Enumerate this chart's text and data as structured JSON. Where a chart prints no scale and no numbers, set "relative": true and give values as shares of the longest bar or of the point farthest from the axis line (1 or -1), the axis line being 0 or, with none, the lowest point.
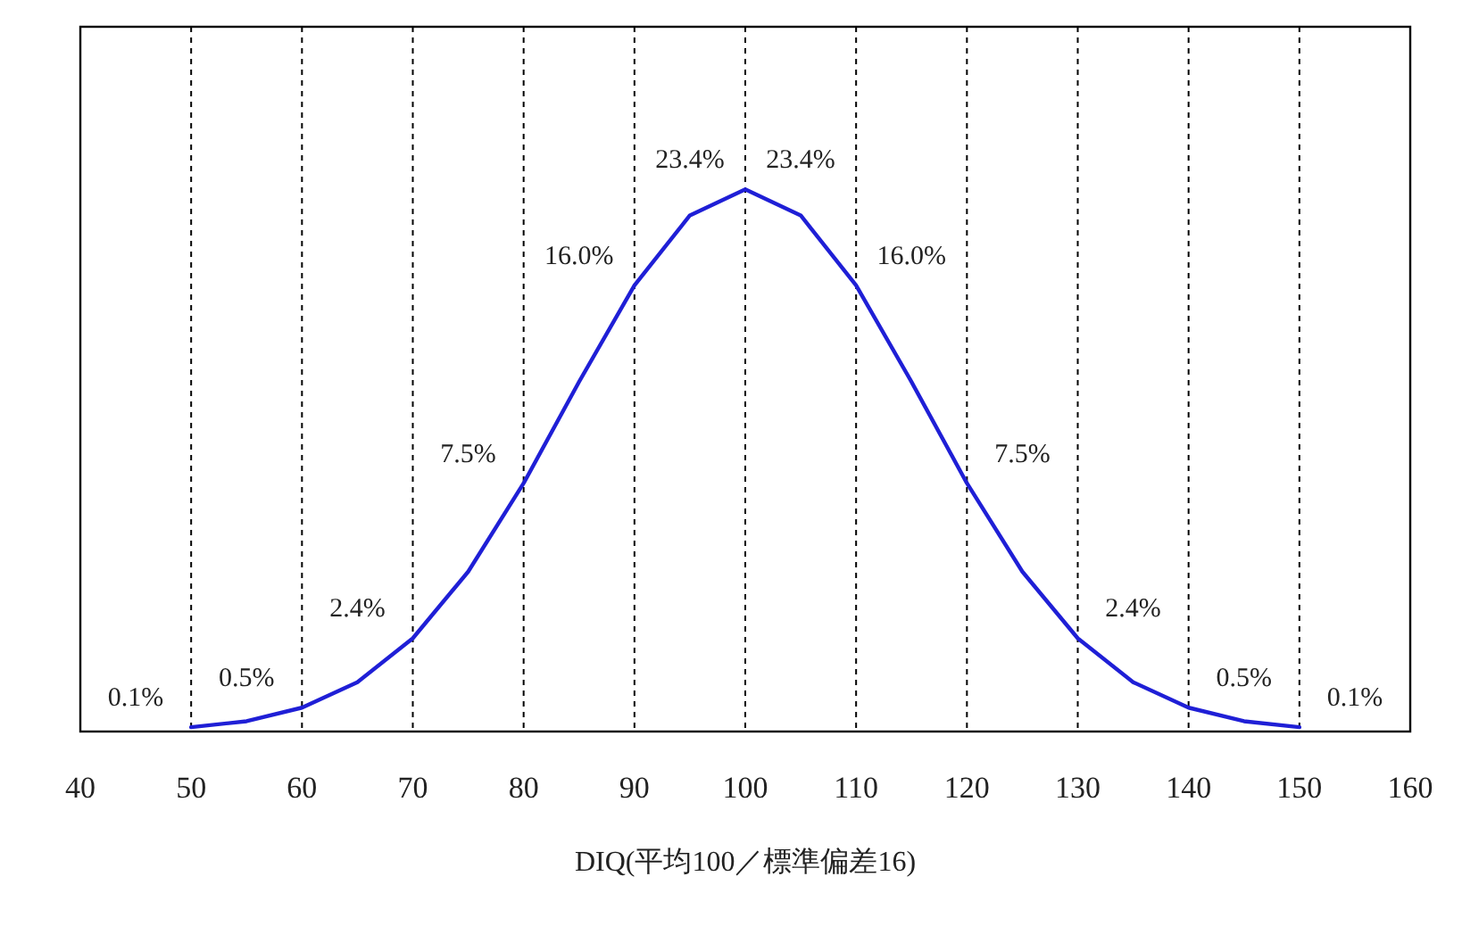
{
  "chart_data": {
    "type": "line",
    "relative": true,
    "xlabel": "DIQ(平均100／標準偏差16)",
    "xlim": [
      40,
      160
    ],
    "xticks": [
      40,
      50,
      60,
      70,
      80,
      90,
      100,
      110,
      120,
      130,
      140,
      150,
      160
    ],
    "grid": "x",
    "x": [
      50,
      55,
      60,
      65,
      70,
      75,
      80,
      85,
      90,
      95,
      100,
      105,
      110,
      115,
      120,
      125,
      130,
      135,
      140,
      145,
      150
    ],
    "series": [
      {
        "color": "#1f1fd6",
        "values": [
          0.008,
          0.019,
          0.044,
          0.091,
          0.172,
          0.295,
          0.458,
          0.645,
          0.823,
          0.952,
          1,
          0.952,
          0.823,
          0.645,
          0.458,
          0.295,
          0.172,
          0.091,
          0.044,
          0.019,
          0.008
        ]
      }
    ],
    "annotations": [
      "0.1%",
      "0.5%",
      "2.4%",
      "7.5%",
      "16.0%",
      "23.4%",
      "23.4%",
      "16.0%",
      "7.5%",
      "2.4%",
      "0.5%",
      "0.1%"
    ]
  }
}
